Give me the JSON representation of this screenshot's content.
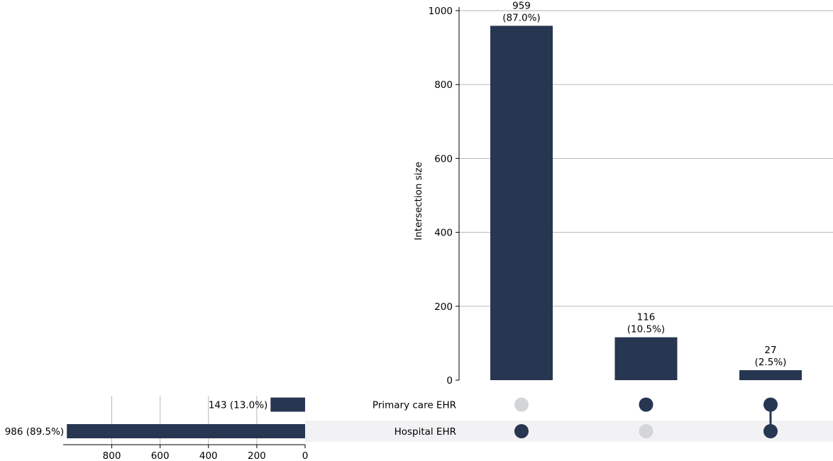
{
  "chart_data": {
    "type": "upset",
    "colors": {
      "bar": "#273651",
      "dot_off": "#d3d5d9",
      "stripe": "#f2f2f4",
      "grid": "#b0b0b0"
    },
    "intersections": {
      "ylabel": "Intersection size",
      "ylim": [
        0,
        1000
      ],
      "yticks": [
        0,
        200,
        400,
        600,
        800,
        1000
      ],
      "bars": [
        {
          "value": 959,
          "count_label": "959",
          "pct_label": "(87.0%)",
          "membership": [
            false,
            true
          ]
        },
        {
          "value": 116,
          "count_label": "116",
          "pct_label": "(10.5%)",
          "membership": [
            true,
            false
          ]
        },
        {
          "value": 27,
          "count_label": "27",
          "pct_label": "(2.5%)",
          "membership": [
            true,
            true
          ]
        }
      ]
    },
    "sets": {
      "xlim": [
        0,
        1000
      ],
      "xticks": [
        0,
        200,
        400,
        600,
        800
      ],
      "items": [
        {
          "name": "Primary care EHR",
          "value": 143,
          "label": "143 (13.0%)"
        },
        {
          "name": "Hospital EHR",
          "value": 986,
          "label": "986 (89.5%)"
        }
      ]
    }
  }
}
